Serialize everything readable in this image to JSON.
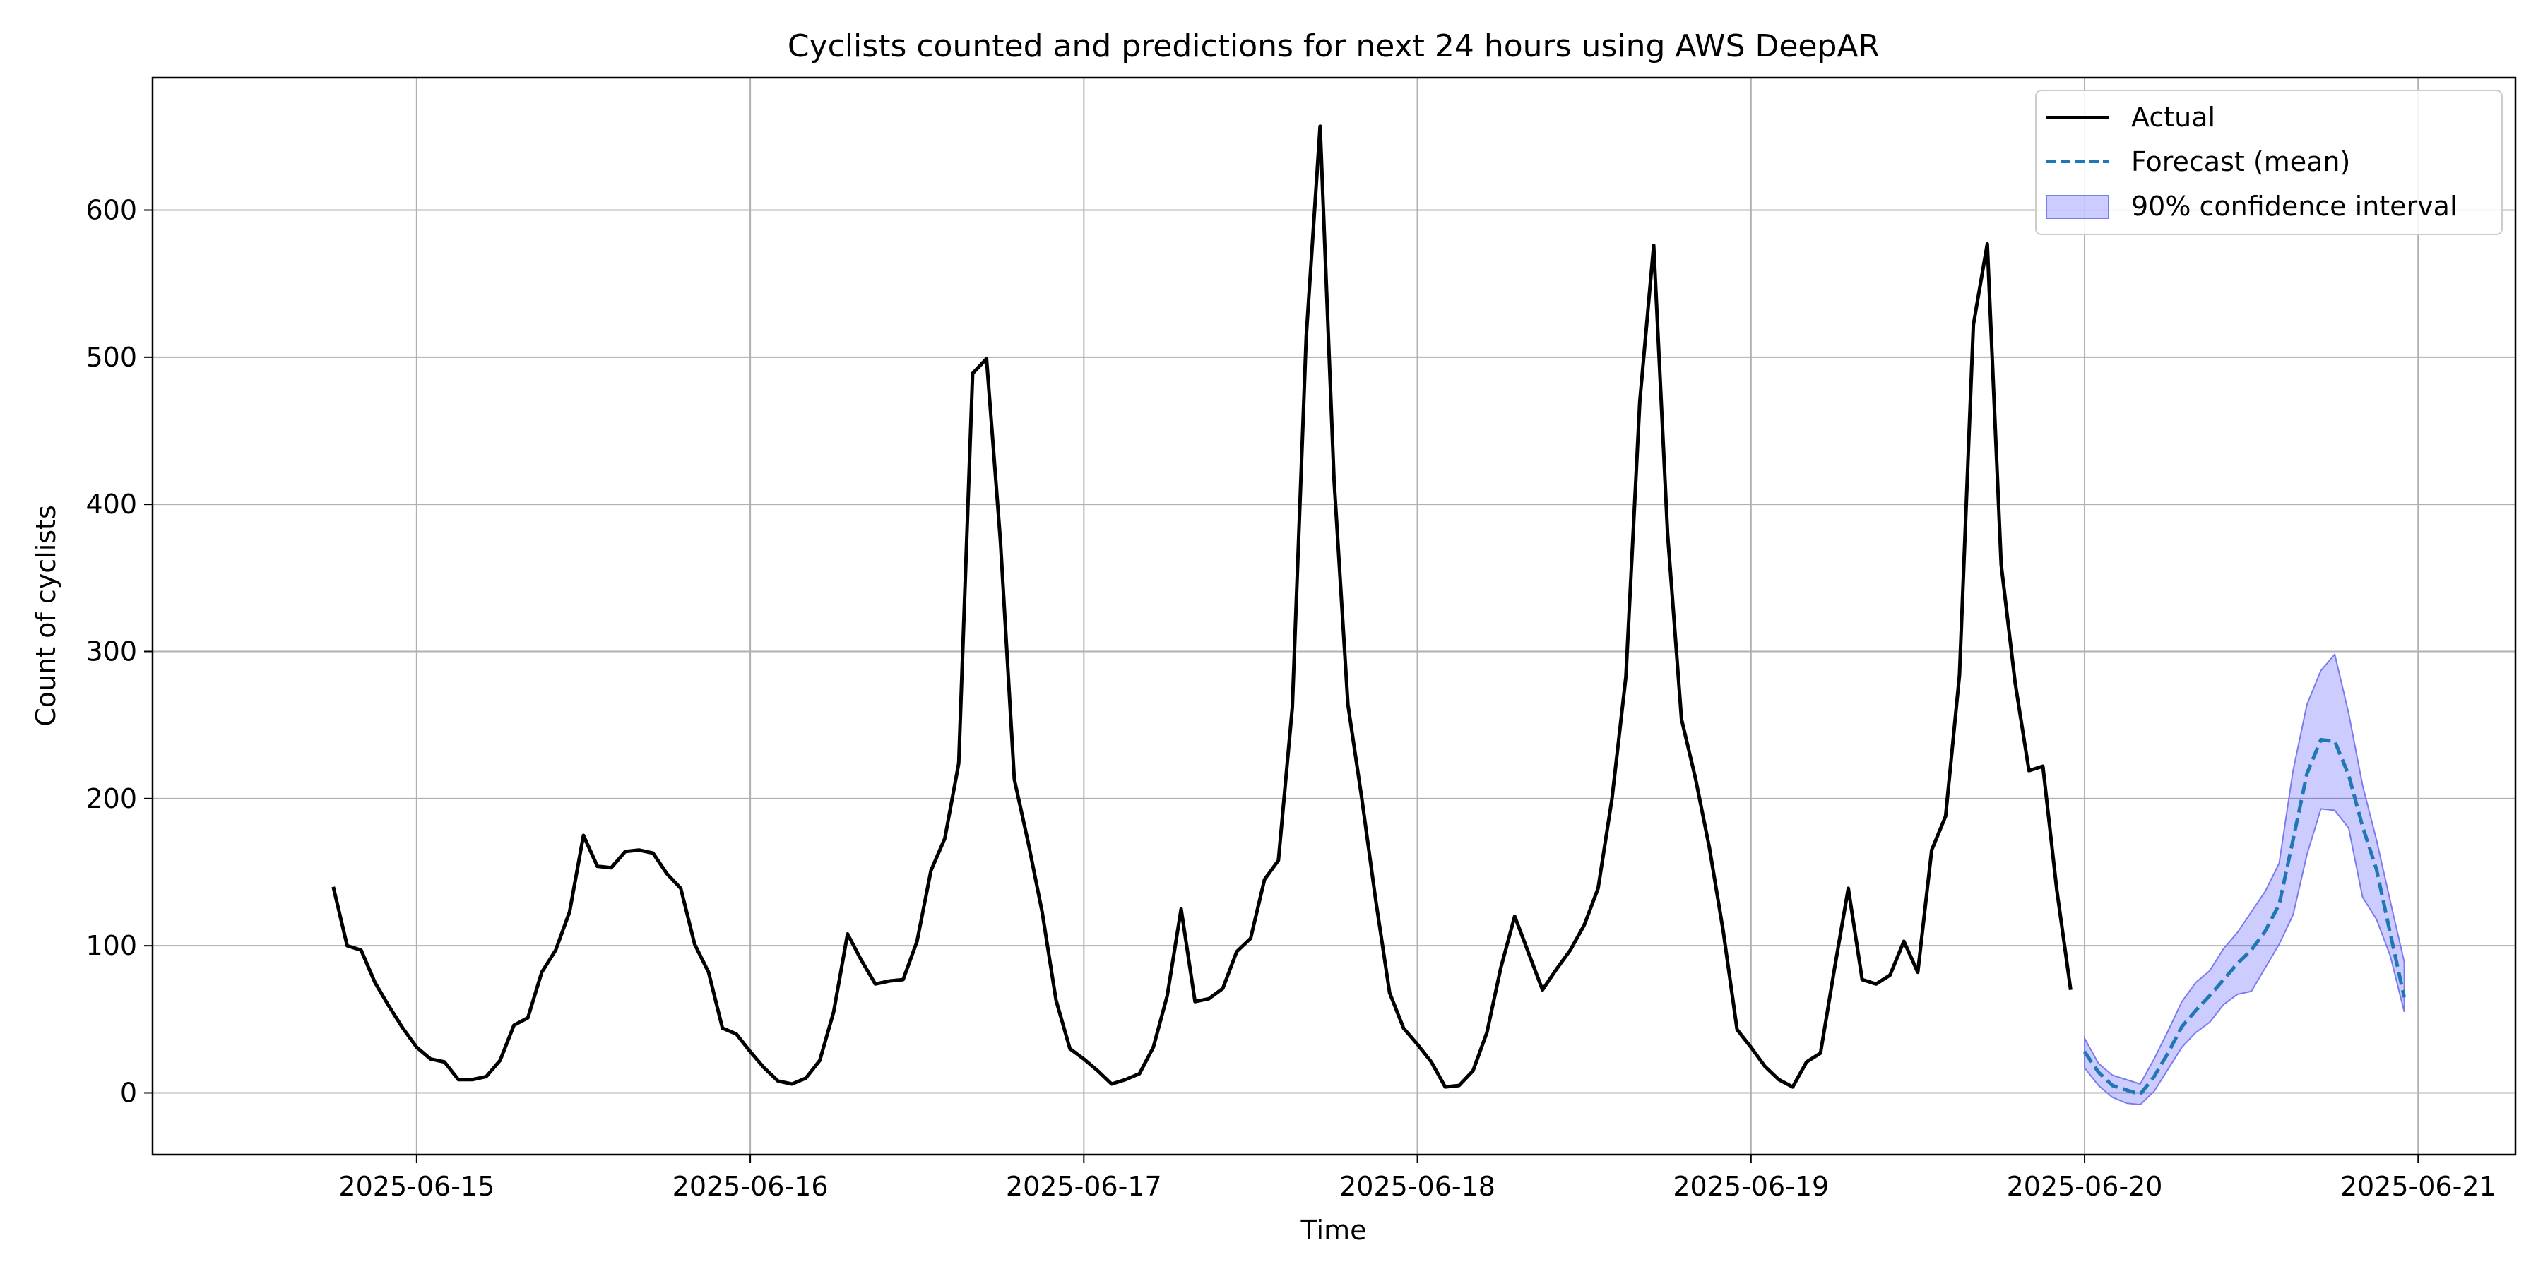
{
  "chart_data": {
    "type": "line",
    "title": "Cyclists counted and predictions for next 24 hours using AWS DeepAR",
    "xlabel": "Time",
    "ylabel": "Count of cyclists",
    "x_ticks": [
      "2025-06-15",
      "2025-06-16",
      "2025-06-17",
      "2025-06-18",
      "2025-06-19",
      "2025-06-20",
      "2025-06-21"
    ],
    "y_ticks": [
      0,
      100,
      200,
      300,
      400,
      500,
      600
    ],
    "xlim": [
      "2025-06-14 05:00",
      "2025-06-21 07:00"
    ],
    "ylim": [
      -42,
      690
    ],
    "grid": true,
    "legend_position": "top-right",
    "x_time_step": "1 hour",
    "series": [
      {
        "name": "Actual",
        "style": "solid",
        "color": "#000000",
        "start": "2025-06-14 18:00",
        "values": [
          140,
          100,
          97,
          75,
          59,
          44,
          31,
          23,
          21,
          9,
          9,
          11,
          22,
          46,
          51,
          82,
          97,
          123,
          175,
          154,
          153,
          164,
          165,
          163,
          149,
          139,
          101,
          82,
          44,
          40,
          28,
          17,
          8,
          6,
          10,
          22,
          55,
          108,
          90,
          74,
          76,
          77,
          103,
          151,
          173,
          224,
          489,
          499,
          375,
          213,
          170,
          123,
          63,
          30,
          23,
          15,
          6,
          9,
          13,
          31,
          66,
          125,
          62,
          64,
          71,
          96,
          105,
          145,
          158,
          262,
          514,
          657,
          417,
          264,
          200,
          131,
          68,
          44,
          33,
          21,
          4,
          5,
          15,
          41,
          85,
          120,
          95,
          70,
          84,
          97,
          114,
          139,
          200,
          283,
          470,
          576,
          380,
          254,
          214,
          167,
          110,
          43,
          31,
          18,
          9,
          4,
          21,
          27,
          84,
          139,
          77,
          74,
          80,
          103,
          82,
          165,
          188,
          284,
          522,
          577,
          359,
          279,
          219,
          222,
          138,
          70
        ]
      },
      {
        "name": "Forecast (mean)",
        "style": "dashed",
        "color": "#1f77b4",
        "start": "2025-06-20 00:00",
        "values": [
          28,
          14,
          5,
          2,
          -1,
          11,
          27,
          45,
          56,
          66,
          77,
          88,
          97,
          110,
          128,
          172,
          217,
          240,
          239,
          216,
          181,
          152,
          108,
          65
        ]
      },
      {
        "name": "90% confidence interval",
        "style": "band",
        "color": "#7b7bf0",
        "start": "2025-06-20 00:00",
        "lower": [
          17,
          5,
          -3,
          -7,
          -8,
          1,
          16,
          31,
          41,
          48,
          60,
          67,
          69,
          85,
          101,
          121,
          162,
          193,
          192,
          180,
          133,
          118,
          93,
          55
        ],
        "upper": [
          37,
          20,
          12,
          9,
          6,
          23,
          42,
          62,
          75,
          83,
          98,
          109,
          123,
          137,
          156,
          219,
          264,
          287,
          298,
          258,
          209,
          172,
          130,
          89
        ]
      }
    ]
  }
}
